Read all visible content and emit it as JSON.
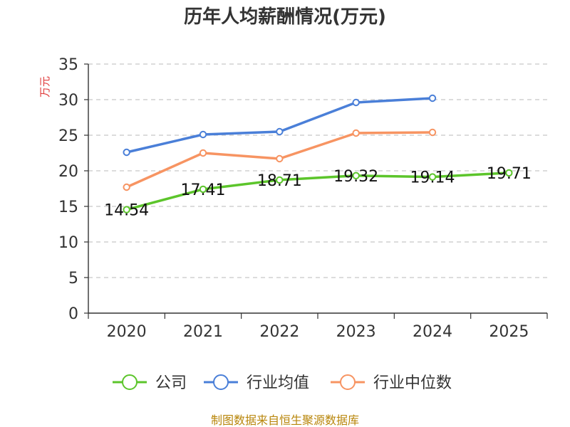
{
  "chart_data": {
    "type": "line",
    "title": "历年人均薪酬情况(万元)",
    "ylabel": "万元",
    "xlabel": "",
    "categories": [
      "2020",
      "2021",
      "2022",
      "2023",
      "2024",
      "2025"
    ],
    "ylim": [
      0,
      35
    ],
    "yticks": [
      0,
      5,
      10,
      15,
      20,
      25,
      30,
      35
    ],
    "grid": true,
    "legend_position": "bottom",
    "series": [
      {
        "name": "公司",
        "color": "#5cc52b",
        "values": [
          14.54,
          17.41,
          18.71,
          19.32,
          19.14,
          19.71
        ],
        "labels": [
          "14.54",
          "17.41",
          "18.71",
          "19.32",
          "19.14",
          "19.71"
        ]
      },
      {
        "name": "行业均值",
        "color": "#4a7fd8",
        "values": [
          22.6,
          25.1,
          25.5,
          29.6,
          30.2,
          null
        ]
      },
      {
        "name": "行业中位数",
        "color": "#f79462",
        "values": [
          17.7,
          22.5,
          21.7,
          25.3,
          25.4,
          null
        ]
      }
    ]
  },
  "footer": {
    "source": "制图数据来自恒生聚源数据库"
  }
}
